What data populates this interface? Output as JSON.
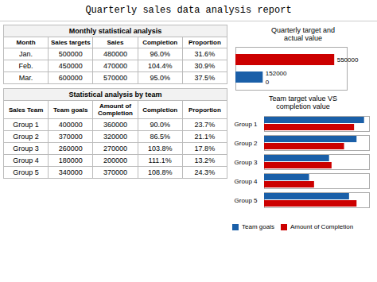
{
  "title": "Quarterly sales data analysis report",
  "chart_data": [
    {
      "type": "table",
      "title": "Monthly statistical analysis",
      "columns": [
        "Month",
        "Sales targets",
        "Sales",
        "Completion",
        "Proportion"
      ],
      "rows": [
        [
          "Jan.",
          "500000",
          "480000",
          "96.0%",
          "31.6%"
        ],
        [
          "Feb.",
          "450000",
          "470000",
          "104.4%",
          "30.9%"
        ],
        [
          "Mar.",
          "600000",
          "570000",
          "95.0%",
          "37.5%"
        ]
      ]
    },
    {
      "type": "table",
      "title": "Statistical analysis by team",
      "columns": [
        "Sales Team",
        "Team goals",
        "Amount of Completion",
        "Completion",
        "Proportion"
      ],
      "rows": [
        [
          "Group 1",
          "400000",
          "360000",
          "90.0%",
          "23.7%"
        ],
        [
          "Group 2",
          "370000",
          "320000",
          "86.5%",
          "21.1%"
        ],
        [
          "Group 3",
          "260000",
          "270000",
          "103.8%",
          "17.8%"
        ],
        [
          "Group 4",
          "180000",
          "200000",
          "111.1%",
          "13.2%"
        ],
        [
          "Group 5",
          "340000",
          "370000",
          "108.8%",
          "24.3%"
        ]
      ]
    },
    {
      "type": "bar",
      "title": "Quarterly target and\nactual value",
      "orientation": "horizontal",
      "categories": [
        null,
        null
      ],
      "values": [
        550000,
        152000
      ],
      "colors": [
        "#cc0000",
        "#1a5fa8"
      ],
      "xlim": [
        0,
        620000
      ],
      "data_labels": true,
      "tick_labels": false,
      "annotations": [
        "0"
      ]
    },
    {
      "type": "bar",
      "title": "Team target value VS\ncompletion value",
      "orientation": "horizontal",
      "categories": [
        "Group 1",
        "Group 2",
        "Group 3",
        "Group 4",
        "Group 5"
      ],
      "series": [
        {
          "name": "Team goals",
          "color": "#1a5fa8",
          "values": [
            400000,
            370000,
            260000,
            180000,
            340000
          ]
        },
        {
          "name": "Amount of Completion",
          "color": "#cc0000",
          "values": [
            360000,
            320000,
            270000,
            200000,
            370000
          ]
        }
      ],
      "xlim": [
        0,
        420000
      ],
      "tick_labels": "y",
      "legend": "bottom"
    }
  ]
}
